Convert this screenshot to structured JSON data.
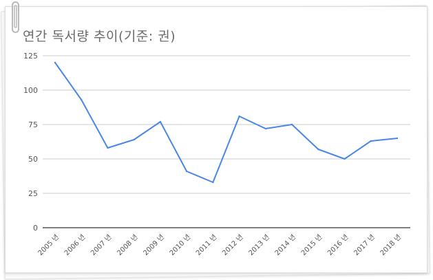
{
  "title": "연간 독서량 추이(기준: 권)",
  "chart_data": {
    "type": "line",
    "title": "연간 독서량 추이(기준: 권)",
    "categories": [
      "2005 년",
      "2006 년",
      "2007 년",
      "2008 년",
      "2009 년",
      "2010 년",
      "2011 년",
      "2012 년",
      "2013 년",
      "2014 년",
      "2015 년",
      "2016 년",
      "2017 년",
      "2018 년"
    ],
    "series": [
      {
        "values": [
          120,
          93,
          58,
          64,
          77,
          41,
          33,
          81,
          72,
          75,
          57,
          50,
          63,
          65
        ],
        "color": "#4a86e8"
      }
    ],
    "ylim": [
      0,
      125
    ],
    "yticks": [
      0,
      25,
      50,
      75,
      100,
      125
    ],
    "grid": true,
    "xlabel": "",
    "ylabel": ""
  }
}
